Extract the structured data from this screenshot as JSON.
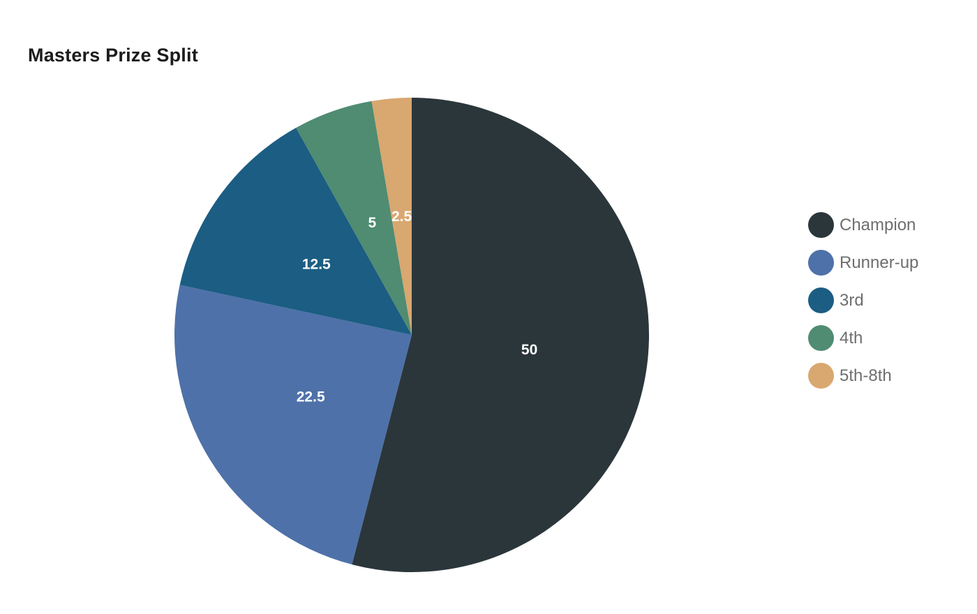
{
  "page": {
    "background_color": "#ffffff",
    "title_color": "#1c1c1c",
    "legend_text_color": "#6e6e6e"
  },
  "chart_data": {
    "type": "pie",
    "title": "Masters Prize Split",
    "labels": [
      "Champion",
      "Runner-up",
      "3rd",
      "4th",
      "5th-8th"
    ],
    "values": [
      50,
      22.5,
      12.5,
      5,
      2.5
    ],
    "value_labels": [
      "50",
      "22.5",
      "12.5",
      "5",
      "2.5"
    ],
    "colors": [
      "#2b363b",
      "#4e71a9",
      "#1c5d83",
      "#4f8c72",
      "#d9a770"
    ],
    "value_label_color": "#ffffff",
    "start_angle": "top",
    "direction": "clockwise",
    "legend_position": "right",
    "grid": false
  }
}
